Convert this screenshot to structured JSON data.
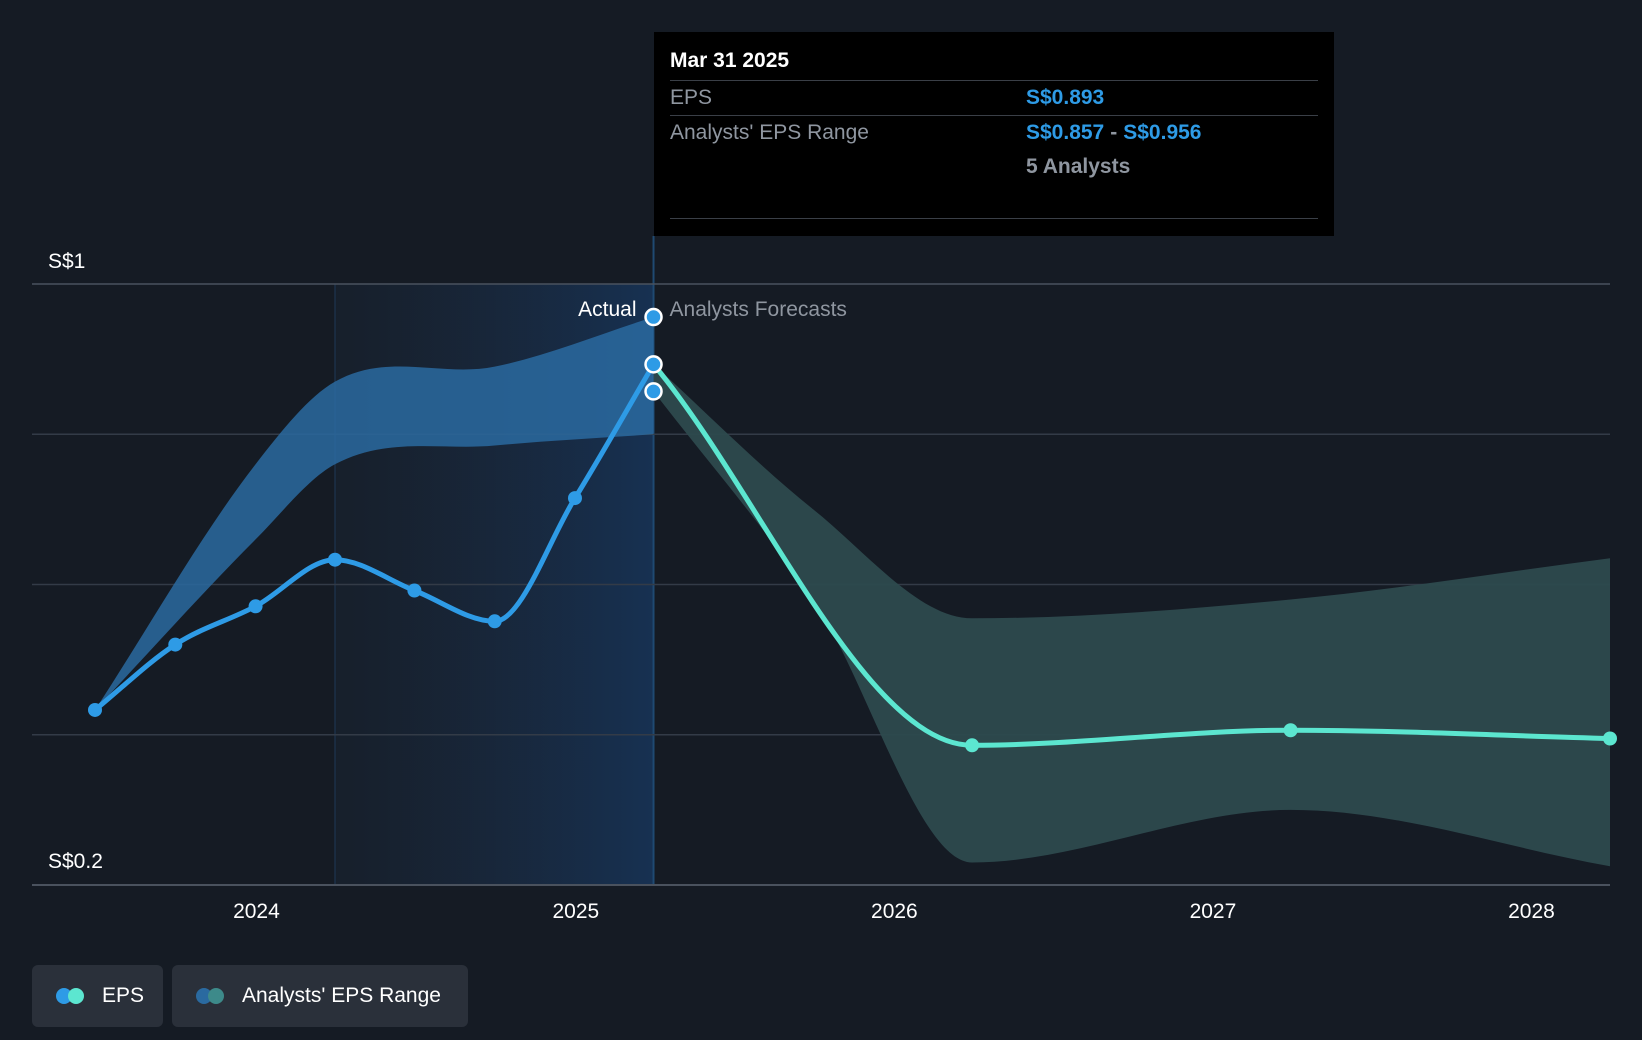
{
  "colors": {
    "background": "#151b24",
    "actual_eps": "#2e9be6",
    "forecast_eps": "#5ce6d0",
    "actual_range": "#2a6aa0",
    "forecast_range": "#2d4a4e",
    "grid": "#333b47",
    "tooltip_bg": "#000000"
  },
  "tooltip": {
    "date": "Mar 31 2025",
    "eps_label": "EPS",
    "eps_value": "S$0.893",
    "range_label": "Analysts' EPS Range",
    "range_low": "S$0.857",
    "range_sep": "-",
    "range_high": "S$0.956",
    "analysts": "5 Analysts"
  },
  "legend": {
    "eps": "EPS",
    "range": "Analysts' EPS Range"
  },
  "chart_data": {
    "type": "line",
    "y_unit_labels": {
      "top": "S$1",
      "bottom": "S$0.2"
    },
    "ylim": [
      0.2,
      1.0
    ],
    "xlim": [
      "2023-06-30",
      "2028-03-31"
    ],
    "x_ticks": [
      "2024",
      "2025",
      "2026",
      "2027",
      "2028"
    ],
    "zone_labels": {
      "actual": "Actual",
      "forecast": "Analysts Forecasts"
    },
    "divider_date": "2025-03-31",
    "grid": true,
    "legend_position": "bottom-left",
    "series": [
      {
        "name": "EPS",
        "kind": "actual",
        "points": [
          {
            "x": "2023-06-30",
            "y": 0.433
          },
          {
            "x": "2023-09-30",
            "y": 0.52
          },
          {
            "x": "2023-12-31",
            "y": 0.571
          },
          {
            "x": "2024-03-31",
            "y": 0.633
          },
          {
            "x": "2024-06-30",
            "y": 0.592
          },
          {
            "x": "2024-09-30",
            "y": 0.551
          },
          {
            "x": "2024-12-31",
            "y": 0.715
          },
          {
            "x": "2025-03-31",
            "y": 0.893
          }
        ]
      },
      {
        "name": "EPS",
        "kind": "forecast",
        "points": [
          {
            "x": "2025-03-31",
            "y": 0.893
          },
          {
            "x": "2026-03-31",
            "y": 0.386
          },
          {
            "x": "2027-03-31",
            "y": 0.406
          },
          {
            "x": "2028-03-31",
            "y": 0.395
          }
        ]
      },
      {
        "name": "Analysts' EPS Range",
        "kind": "actual_range",
        "points": [
          {
            "x": "2023-06-30",
            "low": 0.433,
            "high": 0.433
          },
          {
            "x": "2023-12-31",
            "low": 0.66,
            "high": 0.76
          },
          {
            "x": "2024-03-31",
            "low": 0.76,
            "high": 0.87
          },
          {
            "x": "2024-09-30",
            "low": 0.785,
            "high": 0.89
          },
          {
            "x": "2025-03-31",
            "low": 0.8,
            "high": 0.956
          }
        ]
      },
      {
        "name": "Analysts' EPS Range",
        "kind": "forecast_range",
        "points": [
          {
            "x": "2025-03-31",
            "low": 0.857,
            "high": 0.893
          },
          {
            "x": "2025-09-30",
            "low": 0.58,
            "high": 0.7
          },
          {
            "x": "2026-03-31",
            "low": 0.23,
            "high": 0.555
          },
          {
            "x": "2027-03-31",
            "low": 0.3,
            "high": 0.58
          },
          {
            "x": "2028-03-31",
            "low": 0.225,
            "high": 0.635
          }
        ]
      }
    ],
    "markers": [
      {
        "x": "2025-03-31",
        "y": 0.956
      },
      {
        "x": "2025-03-31",
        "y": 0.893
      },
      {
        "x": "2025-03-31",
        "y": 0.857
      }
    ]
  }
}
